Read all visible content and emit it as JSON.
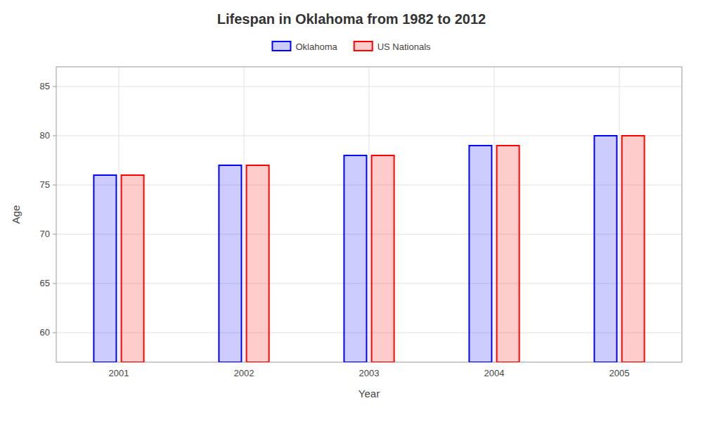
{
  "chart_data": {
    "type": "bar",
    "title": "Lifespan in Oklahoma from 1982 to 2012",
    "x_label": "Year",
    "y_label": "Age",
    "categories": [
      "2001",
      "2002",
      "2003",
      "2004",
      "2005"
    ],
    "series": [
      {
        "name": "Oklahoma",
        "color": "#0000ff",
        "values": [
          76,
          77,
          78,
          79,
          80
        ]
      },
      {
        "name": "US Nationals",
        "color": "#ff0000",
        "values": [
          76,
          77,
          78,
          79,
          80
        ]
      }
    ],
    "ylim": [
      57,
      87
    ],
    "yticks": [
      60,
      65,
      70,
      75,
      80,
      85
    ],
    "grid": true,
    "legend": "top"
  }
}
